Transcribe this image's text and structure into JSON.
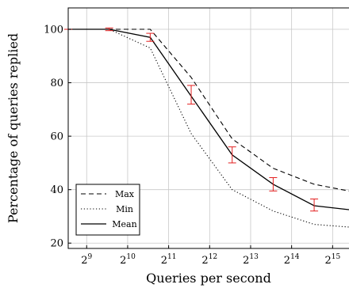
{
  "chart_data": {
    "type": "line",
    "xlabel": "Queries per second",
    "ylabel": "Percentage of queries replied",
    "x_scale": "log2",
    "x_tick_exponents": [
      9,
      10,
      11,
      12,
      13,
      14,
      15
    ],
    "x_tick_base": "2",
    "xlim_log2": [
      8.55,
      15.4
    ],
    "ylim": [
      18,
      108
    ],
    "y_ticks": [
      20,
      40,
      60,
      80,
      100
    ],
    "grid": true,
    "legend_position": "bottom-left",
    "x_log2": [
      8.55,
      9.55,
      10.55,
      11.55,
      12.55,
      13.55,
      14.55,
      15.4
    ],
    "series": [
      {
        "name": "Max",
        "style": "dashed",
        "values": [
          100,
          100,
          100,
          82,
          59,
          48,
          42,
          39.5
        ]
      },
      {
        "name": "Min",
        "style": "dotted",
        "values": [
          100,
          100,
          93,
          61,
          40,
          32,
          27,
          26
        ]
      },
      {
        "name": "Mean",
        "style": "solid",
        "values": [
          100,
          100,
          97,
          75,
          53,
          42,
          34,
          32.5
        ],
        "error_low": [
          100,
          99.5,
          95.5,
          72,
          50,
          39.5,
          32,
          null
        ],
        "error_high": [
          100,
          100.5,
          98.5,
          79,
          56,
          44.5,
          36.5,
          null
        ]
      }
    ],
    "colors": {
      "line": "#000000",
      "error_bar": "#e32020",
      "grid": "#c8c8c8"
    }
  }
}
